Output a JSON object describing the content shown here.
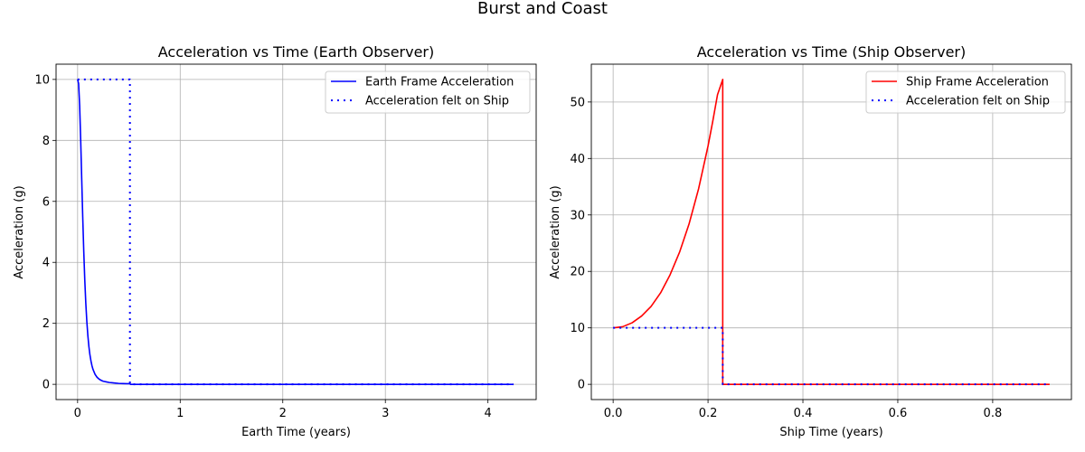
{
  "figure": {
    "suptitle": "Burst and Coast"
  },
  "chart_data": [
    {
      "type": "line",
      "title": "Acceleration vs Time (Earth Observer)",
      "xlabel": "Earth Time (years)",
      "ylabel": "Acceleration (g)",
      "xlim": [
        -0.21,
        4.47
      ],
      "ylim": [
        -0.5,
        10.5
      ],
      "xticks": [
        0,
        1,
        2,
        3,
        4
      ],
      "yticks": [
        0,
        2,
        4,
        6,
        8,
        10
      ],
      "grid": true,
      "legend_position": "top-right",
      "series": [
        {
          "name": "Earth Frame Acceleration",
          "color": "#0000ff",
          "style": "solid",
          "x": [
            0,
            0.01,
            0.02,
            0.03,
            0.04,
            0.05,
            0.06,
            0.07,
            0.08,
            0.09,
            0.1,
            0.11,
            0.12,
            0.13,
            0.14,
            0.15,
            0.17,
            0.19,
            0.21,
            0.23,
            0.25,
            0.28,
            0.31,
            0.34,
            0.37,
            0.4,
            0.44,
            0.48,
            0.51,
            0.515,
            1,
            2,
            3,
            4.25
          ],
          "y": [
            10,
            9.86,
            9.14,
            8.03,
            6.75,
            5.49,
            4.37,
            3.42,
            2.66,
            2.06,
            1.6,
            1.24,
            0.97,
            0.77,
            0.61,
            0.49,
            0.33,
            0.23,
            0.17,
            0.13,
            0.1,
            0.08,
            0.06,
            0.05,
            0.04,
            0.03,
            0.025,
            0.02,
            0.02,
            0,
            0,
            0,
            0,
            0
          ]
        },
        {
          "name": "Acceleration felt on Ship",
          "color": "#0000ff",
          "style": "dotted",
          "x": [
            0,
            0.51,
            0.51,
            4.25
          ],
          "y": [
            10,
            10,
            0,
            0
          ]
        }
      ]
    },
    {
      "type": "line",
      "title": "Acceleration vs Time (Ship Observer)",
      "xlabel": "Ship Time (years)",
      "ylabel": "Acceleration (g)",
      "xlim": [
        -0.046,
        0.966
      ],
      "ylim": [
        -2.7,
        56.7
      ],
      "xticks": [
        0,
        0.2,
        0.4,
        0.6,
        0.8
      ],
      "xtick_labels": [
        "0.0",
        "0.2",
        "0.4",
        "0.6",
        "0.8"
      ],
      "yticks": [
        0,
        10,
        20,
        30,
        40,
        50
      ],
      "grid": true,
      "legend_position": "top-right",
      "series": [
        {
          "name": "Ship Frame Acceleration",
          "color": "#ff0000",
          "style": "solid",
          "x": [
            0,
            0.02,
            0.04,
            0.06,
            0.08,
            0.1,
            0.12,
            0.14,
            0.16,
            0.18,
            0.2,
            0.21,
            0.22,
            0.231,
            0.231,
            0.5,
            0.7,
            0.92
          ],
          "y": [
            10,
            10.2,
            10.9,
            12.1,
            13.8,
            16.2,
            19.4,
            23.4,
            28.4,
            34.6,
            42.2,
            46.6,
            51.3,
            54,
            0,
            0,
            0,
            0
          ]
        },
        {
          "name": "Acceleration felt on Ship",
          "color": "#0000ff",
          "style": "dotted",
          "x": [
            0,
            0.231,
            0.231,
            0.92
          ],
          "y": [
            10,
            10,
            0,
            0
          ]
        }
      ]
    }
  ]
}
